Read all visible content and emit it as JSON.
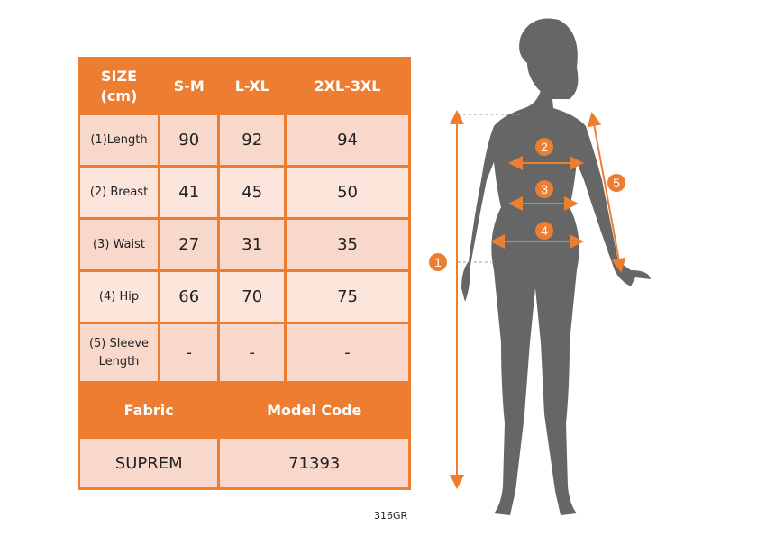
{
  "table": {
    "header": [
      "SIZE\n(cm)",
      "S-M",
      "L-XL",
      "2XL-3XL"
    ],
    "rows": [
      {
        "label": "(1)Length",
        "values": [
          "90",
          "92",
          "94"
        ]
      },
      {
        "label": "(2) Breast",
        "values": [
          "41",
          "45",
          "50"
        ]
      },
      {
        "label": "(3) Waist",
        "values": [
          "27",
          "31",
          "35"
        ]
      },
      {
        "label": "(4) Hip",
        "values": [
          "66",
          "70",
          "75"
        ]
      },
      {
        "label": "(5) Sleeve Length",
        "values": [
          "-",
          "-",
          "-"
        ]
      }
    ],
    "footer_header": [
      "Fabric",
      "Model Code"
    ],
    "footer_values": [
      "SUPREM",
      "71393"
    ]
  },
  "corner_code": "316GR",
  "figure": {
    "markers": [
      "1",
      "2",
      "3",
      "4",
      "5"
    ]
  },
  "colors": {
    "accent": "#ed7d31",
    "row_dark": "#f8d8ca",
    "row_light": "#fce6dc",
    "silhouette": "#666666"
  }
}
